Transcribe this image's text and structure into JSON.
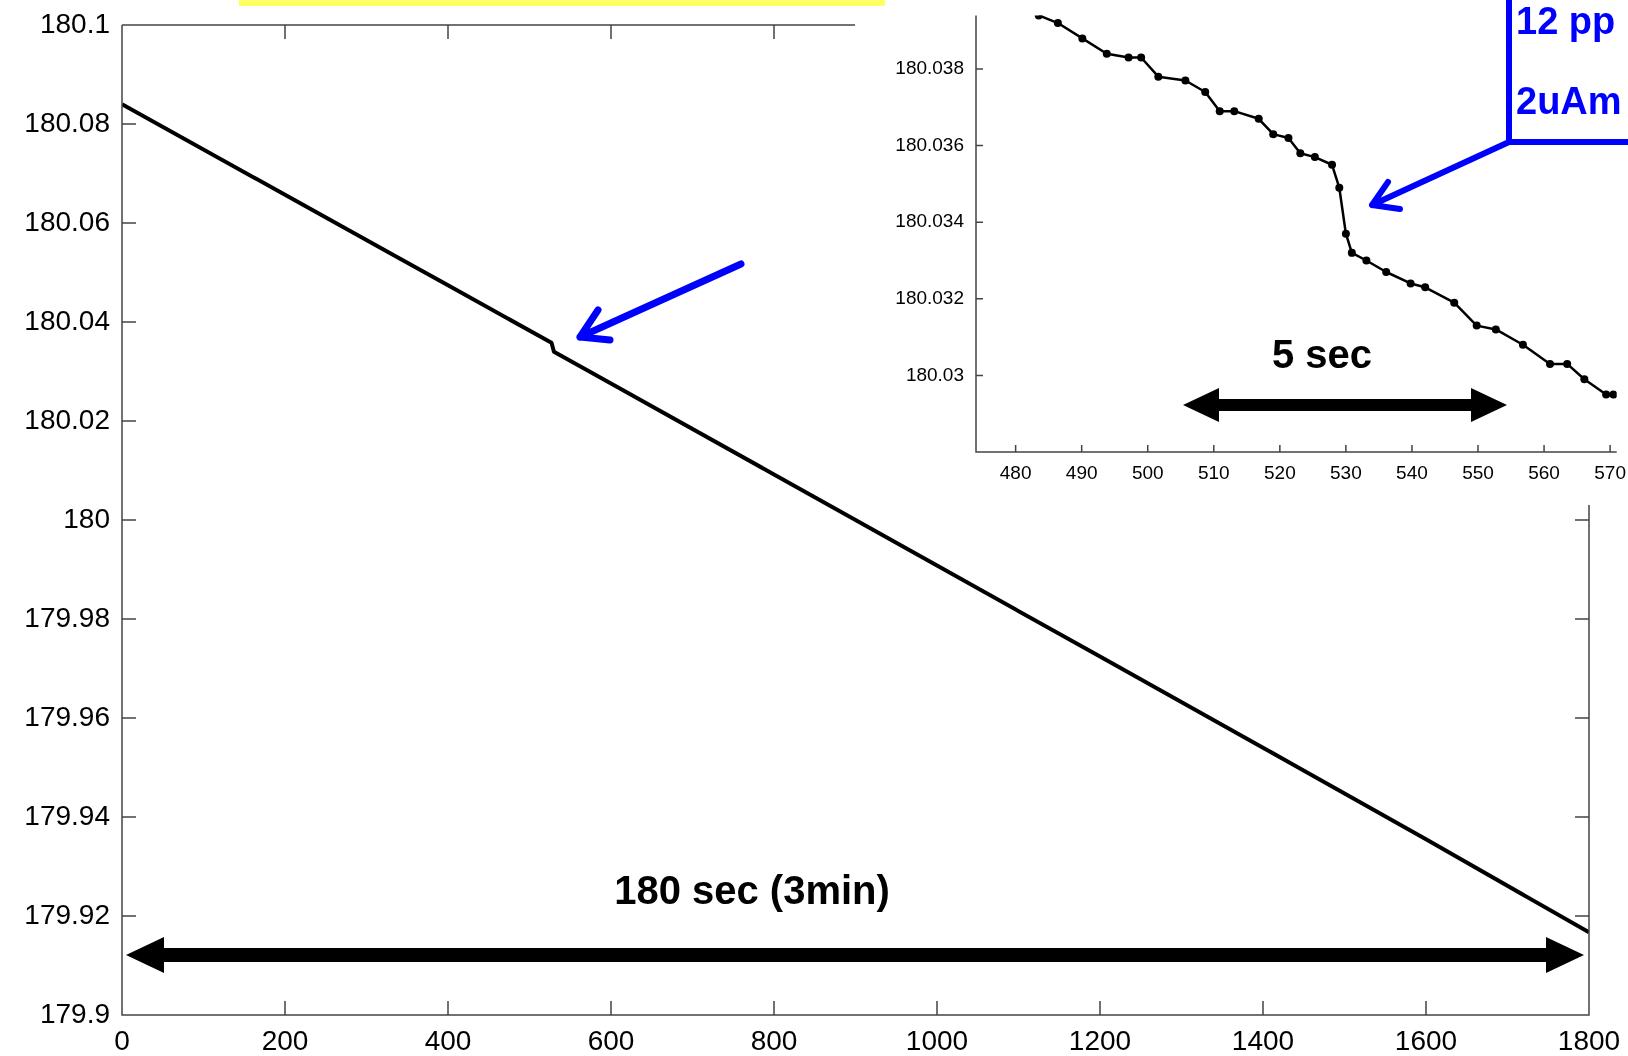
{
  "chart_data": [
    {
      "type": "line",
      "x": [
        0,
        200,
        400,
        527,
        530,
        600,
        800,
        1000,
        1200,
        1400,
        1600,
        1800
      ],
      "values": [
        180.084,
        180.0657,
        180.0474,
        180.0358,
        180.034,
        180.0276,
        180.0092,
        179.9908,
        179.9724,
        179.954,
        179.9355,
        179.9167
      ],
      "color": "#000000",
      "marker": "none",
      "xlim": [
        0,
        1800
      ],
      "xticks": [
        0,
        200,
        400,
        600,
        800,
        1000,
        1200,
        1400,
        1600,
        1800
      ],
      "ylim": [
        179.9,
        180.1
      ],
      "yticks": [
        179.9,
        179.92,
        179.94,
        179.96,
        179.98,
        180,
        180.02,
        180.04,
        180.06,
        180.08,
        180.1
      ],
      "annotations": [
        "180 sec (3min)"
      ]
    },
    {
      "type": "line",
      "x": [
        483.5,
        486.4,
        490.1,
        493.8,
        497.1,
        499.0,
        501.6,
        505.7,
        508.7,
        510.9,
        513.1,
        516.8,
        519.0,
        521.3,
        523.1,
        525.3,
        527.9,
        529.0,
        530.0,
        530.9,
        533.1,
        536.1,
        539.8,
        542.0,
        546.4,
        549.8,
        552.7,
        556.8,
        560.9,
        563.5,
        566.1,
        569.4,
        570.5
      ],
      "values": [
        180.0394,
        180.0392,
        180.0388,
        180.0384,
        180.0383,
        180.0383,
        180.0378,
        180.0377,
        180.0374,
        180.0369,
        180.0369,
        180.0367,
        180.0363,
        180.0362,
        180.0358,
        180.0357,
        180.0355,
        180.0349,
        180.0337,
        180.0332,
        180.033,
        180.0327,
        180.0324,
        180.0323,
        180.0319,
        180.0313,
        180.0312,
        180.0308,
        180.0303,
        180.0303,
        180.0299,
        180.0295,
        180.0295
      ],
      "color": "#000000",
      "marker": "circle",
      "xlim": [
        474,
        571
      ],
      "xticks": [
        480,
        490,
        500,
        510,
        520,
        530,
        540,
        550,
        560,
        570
      ],
      "ylim": [
        180.028,
        180.0394
      ],
      "yticks": [
        180.03,
        180.032,
        180.034,
        180.036,
        180.038
      ],
      "annotations": [
        "5 sec",
        "12 pp",
        "2uAm"
      ]
    }
  ]
}
